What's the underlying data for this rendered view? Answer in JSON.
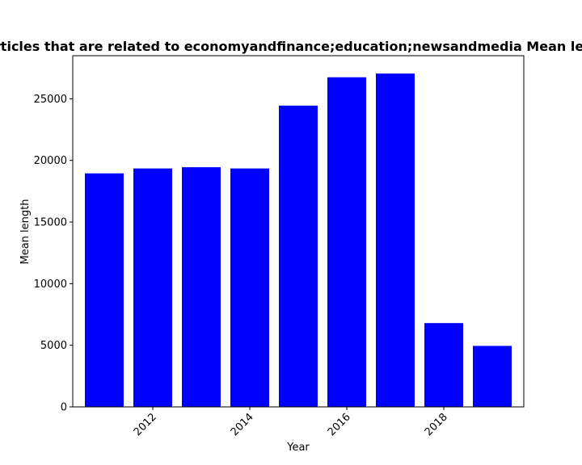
{
  "chart_data": {
    "type": "bar",
    "title": "Number of articles that are related to economyandfinance;education;newsandmedia Mean length in private",
    "xlabel": "Year",
    "ylabel": "Mean length",
    "x": [
      2011,
      2012,
      2013,
      2014,
      2015,
      2016,
      2017,
      2018,
      2019
    ],
    "values": [
      18950,
      19350,
      19450,
      19350,
      24450,
      26750,
      27050,
      6800,
      4950
    ],
    "xticks": [
      2012,
      2014,
      2016,
      2018
    ],
    "xtick_labels": [
      "2012",
      "2014",
      "2016",
      "2018"
    ],
    "yticks": [
      0,
      5000,
      10000,
      15000,
      20000,
      25000
    ],
    "ytick_labels": [
      "0",
      "5000",
      "10000",
      "15000",
      "20000",
      "25000"
    ],
    "xlim": [
      2010.35,
      2019.65
    ],
    "ylim": [
      0,
      28500
    ],
    "bar_color": "#0000ff",
    "grid": false,
    "legend": "none"
  }
}
